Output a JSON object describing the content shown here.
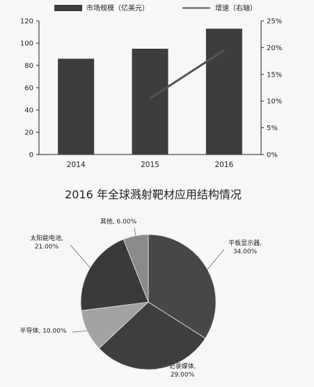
{
  "chart_data": [
    {
      "type": "bar",
      "categories": [
        "2014",
        "2015",
        "2016"
      ],
      "series": [
        {
          "name": "市场规模（亿美元）",
          "type": "bar",
          "axis": "left",
          "values": [
            86,
            95,
            113
          ]
        },
        {
          "name": "增速（右轴）",
          "type": "line",
          "axis": "right",
          "values": [
            null,
            10.5,
            19.5
          ]
        }
      ],
      "y_left": {
        "ylim": [
          0,
          120
        ],
        "ticks": [
          "0",
          "20",
          "40",
          "60",
          "80",
          "100",
          "120"
        ]
      },
      "y_right": {
        "ylim": [
          0,
          25
        ],
        "ticks": [
          "0%",
          "5%",
          "10%",
          "15%",
          "20%",
          "25%"
        ]
      },
      "grid": false,
      "legend_position": "top",
      "colors": {
        "bar": "#3d3d3d",
        "line": "#555555"
      }
    },
    {
      "type": "pie",
      "title": "2016 年全球溅射靶材应用结构情况",
      "slices": [
        {
          "label": "平板显示器",
          "value": 34.0,
          "value_label": "34.00%",
          "color": "#474747"
        },
        {
          "label": "记录媒体",
          "value": 29.0,
          "value_label": "29.00%",
          "color": "#3e3e3e"
        },
        {
          "label": "半导体",
          "value": 10.0,
          "value_label": "10.00%",
          "color": "#a3a3a3"
        },
        {
          "label": "太阳能电池",
          "value": 21.0,
          "value_label": "21.00%",
          "color": "#3a3a3a"
        },
        {
          "label": "其他",
          "value": 6.0,
          "value_label": "6.00%",
          "color": "#8a8a8a"
        }
      ],
      "start_angle": "top",
      "direction": "clockwise"
    }
  ]
}
